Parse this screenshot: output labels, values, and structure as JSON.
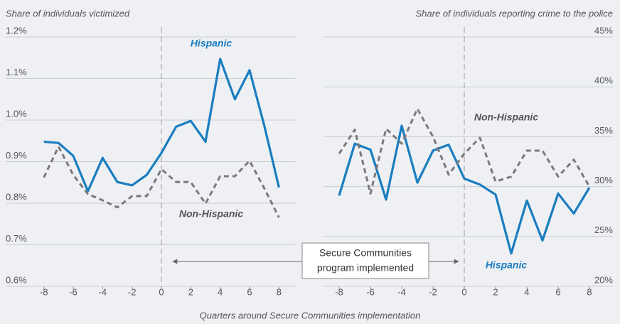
{
  "x_label": "Quarters around Secure Communities implementation",
  "annotation": [
    "Secure Communities",
    "program implemented"
  ],
  "chart_data": [
    {
      "type": "line",
      "title": "Share of individuals victimized",
      "x": [
        -8,
        -7,
        -6,
        -5,
        -4,
        -3,
        -2,
        -1,
        0,
        1,
        2,
        3,
        4,
        5,
        6,
        7,
        8
      ],
      "xlim": [
        -9,
        9
      ],
      "xticks": [
        -8,
        -6,
        -4,
        -2,
        0,
        2,
        4,
        6,
        8
      ],
      "ylim": [
        0.6,
        1.2
      ],
      "yticks": [
        {
          "value": 0.6,
          "label": "0.6%"
        },
        {
          "value": 0.7,
          "label": "0.7%"
        },
        {
          "value": 0.8,
          "label": "0.8%"
        },
        {
          "value": 0.9,
          "label": "0.9%"
        },
        {
          "value": 1.0,
          "label": "1.0%"
        },
        {
          "value": 1.1,
          "label": "1.1%"
        },
        {
          "value": 1.2,
          "label": "1.2%"
        }
      ],
      "grid": true,
      "vline": 0,
      "axis_side": "left",
      "series": [
        {
          "name": "Hispanic",
          "color": "#1a7dc0",
          "dashed": false,
          "values": [
            0.948,
            0.945,
            0.914,
            0.829,
            0.909,
            0.851,
            0.843,
            0.868,
            0.921,
            0.984,
            0.998,
            0.948,
            1.147,
            1.05,
            1.12,
            0.987,
            0.838
          ]
        },
        {
          "name": "Non-Hispanic",
          "color": "#7a7a7a",
          "dashed": true,
          "values": [
            0.862,
            0.936,
            0.868,
            0.822,
            0.807,
            0.79,
            0.817,
            0.817,
            0.882,
            0.851,
            0.851,
            0.799,
            0.865,
            0.865,
            0.902,
            0.836,
            0.766
          ]
        }
      ]
    },
    {
      "type": "line",
      "title": "Share of individuals reporting crime to the police",
      "x": [
        -8,
        -7,
        -6,
        -5,
        -4,
        -3,
        -2,
        -1,
        0,
        1,
        2,
        3,
        4,
        5,
        6,
        7,
        8
      ],
      "xlim": [
        -9,
        9
      ],
      "xticks": [
        -8,
        -6,
        -4,
        -2,
        0,
        2,
        4,
        6,
        8
      ],
      "ylim": [
        20,
        45
      ],
      "yticks": [
        {
          "value": 20,
          "label": "20%"
        },
        {
          "value": 25,
          "label": "25%"
        },
        {
          "value": 30,
          "label": "30%"
        },
        {
          "value": 35,
          "label": "35%"
        },
        {
          "value": 40,
          "label": "40%"
        },
        {
          "value": 45,
          "label": "45%"
        }
      ],
      "grid": true,
      "vline": 0,
      "axis_side": "right",
      "series": [
        {
          "name": "Hispanic",
          "color": "#1a7dc0",
          "dashed": false,
          "values": [
            29.1,
            34.3,
            33.7,
            28.7,
            36.1,
            30.4,
            33.6,
            34.2,
            30.8,
            30.2,
            29.2,
            23.3,
            28.6,
            24.6,
            29.3,
            27.3,
            29.9
          ]
        },
        {
          "name": "Non-Hispanic",
          "color": "#7a7a7a",
          "dashed": true,
          "values": [
            33.3,
            35.7,
            29.3,
            35.8,
            34.3,
            37.8,
            35.0,
            31.2,
            33.3,
            34.9,
            30.5,
            31.0,
            33.6,
            33.6,
            31.0,
            32.7,
            30.0
          ]
        }
      ]
    }
  ]
}
